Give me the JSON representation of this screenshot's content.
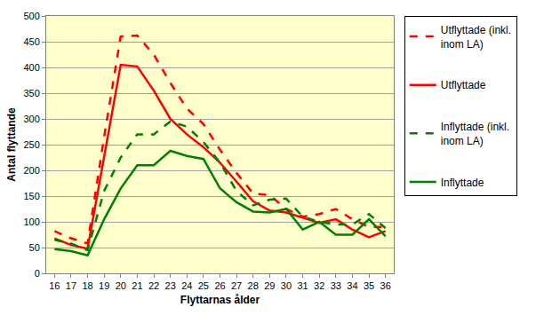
{
  "chart_data": {
    "type": "line",
    "x_label": "Flyttarnas ålder",
    "y_label": "Antal flyttande",
    "x": [
      16,
      17,
      18,
      19,
      20,
      21,
      22,
      23,
      24,
      25,
      26,
      27,
      28,
      29,
      30,
      31,
      32,
      33,
      34,
      35,
      36
    ],
    "series": [
      {
        "name": "Utflyttade (inkl. inom LA)",
        "color": "#ff0000",
        "line_style": "dashed",
        "values": [
          82,
          68,
          58,
          265,
          460,
          462,
          425,
          370,
          320,
          290,
          240,
          195,
          155,
          152,
          125,
          110,
          115,
          125,
          105,
          90,
          90
        ]
      },
      {
        "name": "Utflyttade",
        "color": "#ff0000",
        "line_style": "solid",
        "values": [
          68,
          55,
          48,
          230,
          405,
          402,
          355,
          300,
          270,
          245,
          215,
          178,
          140,
          122,
          118,
          108,
          98,
          105,
          85,
          70,
          82
        ]
      },
      {
        "name": "Inflyttade (inkl. inom LA)",
        "color": "#008000",
        "line_style": "dashed",
        "values": [
          65,
          58,
          45,
          160,
          225,
          270,
          270,
          295,
          285,
          255,
          215,
          160,
          132,
          143,
          145,
          110,
          100,
          95,
          95,
          115,
          88
        ]
      },
      {
        "name": "Inflyttade",
        "color": "#008000",
        "line_style": "solid",
        "values": [
          47,
          43,
          35,
          105,
          165,
          210,
          210,
          238,
          228,
          222,
          165,
          138,
          120,
          118,
          125,
          85,
          100,
          75,
          75,
          105,
          72
        ]
      }
    ],
    "xlim": [
      15.5,
      36.5
    ],
    "xticks": [
      16,
      17,
      18,
      19,
      20,
      21,
      22,
      23,
      24,
      25,
      26,
      27,
      28,
      29,
      30,
      31,
      32,
      33,
      34,
      35,
      36
    ],
    "ylim": [
      0,
      500
    ],
    "yticks": [
      0,
      50,
      100,
      150,
      200,
      250,
      300,
      350,
      400,
      450,
      500
    ],
    "grid": true,
    "legend": "right"
  }
}
